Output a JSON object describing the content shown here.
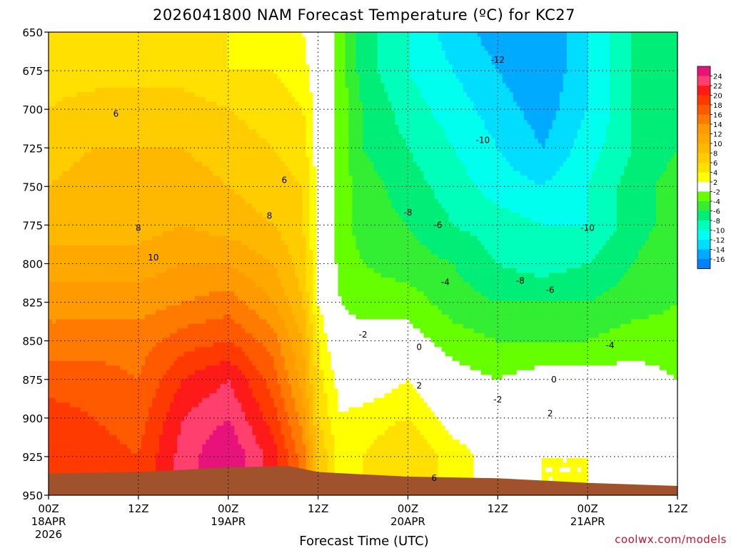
{
  "chart_data": {
    "type": "heatmap",
    "title": "2026041800 NAM Forecast Temperature (ºC) for KC27",
    "xlabel": "Forecast Time (UTC)",
    "credit": "coolwx.com/models",
    "y_axis": {
      "unit": "hPa",
      "ticks": [
        "650",
        "675",
        "700",
        "725",
        "750",
        "775",
        "800",
        "825",
        "850",
        "875",
        "900",
        "925",
        "950"
      ],
      "range": [
        650,
        950
      ]
    },
    "x_axis": {
      "unit": "hours since 2026-04-18 00Z",
      "range": [
        0,
        84
      ],
      "ticks": [
        {
          "h": 0,
          "label": "00Z",
          "date": "18APR",
          "year": "2026"
        },
        {
          "h": 12,
          "label": "12Z",
          "date": "",
          "year": ""
        },
        {
          "h": 24,
          "label": "00Z",
          "date": "19APR",
          "year": ""
        },
        {
          "h": 36,
          "label": "12Z",
          "date": "",
          "year": ""
        },
        {
          "h": 48,
          "label": "00Z",
          "date": "20APR",
          "year": ""
        },
        {
          "h": 60,
          "label": "12Z",
          "date": "",
          "year": ""
        },
        {
          "h": 72,
          "label": "00Z",
          "date": "21APR",
          "year": ""
        },
        {
          "h": 84,
          "label": "12Z",
          "date": "",
          "year": ""
        }
      ]
    },
    "colorbar": {
      "bands": [
        {
          "lo": 24,
          "hi": 26,
          "color": "#e8137a"
        },
        {
          "lo": 22,
          "hi": 24,
          "color": "#ff3f6e"
        },
        {
          "lo": 20,
          "hi": 22,
          "color": "#ff1a1a"
        },
        {
          "lo": 18,
          "hi": 20,
          "color": "#ff3a00"
        },
        {
          "lo": 16,
          "hi": 18,
          "color": "#ff5a00"
        },
        {
          "lo": 14,
          "hi": 16,
          "color": "#ff7a00"
        },
        {
          "lo": 12,
          "hi": 14,
          "color": "#ff9a00"
        },
        {
          "lo": 10,
          "hi": 12,
          "color": "#ffa800"
        },
        {
          "lo": 8,
          "hi": 10,
          "color": "#ffb800"
        },
        {
          "lo": 6,
          "hi": 8,
          "color": "#ffcc00"
        },
        {
          "lo": 4,
          "hi": 6,
          "color": "#ffe000"
        },
        {
          "lo": 2,
          "hi": 4,
          "color": "#ffff00"
        },
        {
          "lo": -2,
          "hi": 2,
          "color": "#ffffff"
        },
        {
          "lo": -4,
          "hi": -2,
          "color": "#66ff00"
        },
        {
          "lo": -6,
          "hi": -4,
          "color": "#33ee33"
        },
        {
          "lo": -8,
          "hi": -6,
          "color": "#00ee77"
        },
        {
          "lo": -10,
          "hi": -8,
          "color": "#00ffbb"
        },
        {
          "lo": -12,
          "hi": -10,
          "color": "#00ffee"
        },
        {
          "lo": -14,
          "hi": -12,
          "color": "#00ddff"
        },
        {
          "lo": -16,
          "hi": -14,
          "color": "#00aaff"
        },
        {
          "lo": -18,
          "hi": -16,
          "color": "#0080ff"
        }
      ],
      "labels": [
        "24",
        "22",
        "20",
        "18",
        "16",
        "14",
        "12",
        "10",
        "8",
        "6",
        "4",
        "2",
        "-2",
        "-4",
        "-6",
        "-8",
        "-10",
        "-12",
        "-14",
        "-16"
      ]
    },
    "temperature_grid_C": {
      "hours": [
        0,
        6,
        12,
        18,
        24,
        30,
        34,
        36,
        39,
        42,
        48,
        54,
        60,
        66,
        72,
        78,
        84
      ],
      "pressures_hPa": [
        650,
        675,
        700,
        725,
        750,
        775,
        800,
        825,
        850,
        875,
        900,
        925,
        950
      ],
      "values": [
        [
          4,
          4,
          4,
          4,
          4,
          3,
          2,
          0,
          -3,
          -7,
          -10,
          -13,
          -15,
          -16,
          -12,
          -8,
          -6
        ],
        [
          5,
          5,
          5,
          5,
          4,
          4,
          3,
          0,
          -3,
          -7,
          -10,
          -12,
          -14,
          -16,
          -12,
          -8,
          -6
        ],
        [
          6,
          7,
          7,
          7,
          6,
          5,
          4,
          1,
          -3,
          -6,
          -9,
          -11,
          -13,
          -15,
          -12,
          -8,
          -6
        ],
        [
          7,
          8,
          8,
          8,
          7,
          6,
          5,
          1,
          -3,
          -6,
          -8,
          -10,
          -12,
          -14,
          -11,
          -8,
          -6
        ],
        [
          8,
          9,
          9,
          9,
          8,
          7,
          6,
          1,
          -3,
          -5,
          -7,
          -9,
          -11,
          -12,
          -10,
          -7,
          -5
        ],
        [
          9,
          9,
          9,
          10,
          9,
          8,
          6,
          1,
          -3,
          -5,
          -6,
          -8,
          -9,
          -10,
          -10,
          -7,
          -5
        ],
        [
          11,
          11,
          11,
          12,
          12,
          10,
          7,
          2,
          -3,
          -4,
          -5,
          -6,
          -8,
          -9,
          -8,
          -6,
          -4
        ],
        [
          13,
          13,
          13,
          14,
          15,
          12,
          8,
          2,
          -2,
          -3,
          -3,
          -5,
          -6,
          -6,
          -6,
          -5,
          -4
        ],
        [
          15,
          15,
          15,
          17,
          18,
          15,
          10,
          4,
          -1,
          -1,
          -1,
          -3,
          -4,
          -4,
          -4,
          -3,
          -3
        ],
        [
          17,
          17,
          16,
          20,
          22,
          17,
          11,
          5,
          1,
          0,
          2,
          -1,
          -2,
          -1,
          -1,
          -1,
          -2
        ],
        [
          19,
          18,
          17,
          22,
          24,
          19,
          13,
          6,
          2,
          3,
          4,
          1,
          0,
          1,
          1,
          0,
          -1
        ],
        [
          20,
          19,
          18,
          23,
          26,
          21,
          15,
          8,
          3,
          4,
          6,
          3,
          1,
          2,
          2,
          1,
          0
        ],
        [
          20,
          19,
          18,
          23,
          26,
          21,
          15,
          8,
          3,
          4,
          6,
          3,
          1,
          2,
          2,
          1,
          0
        ]
      ]
    },
    "contour_labels": [
      {
        "text": "6",
        "h": 9,
        "p": 703
      },
      {
        "text": "8",
        "h": 12,
        "p": 777
      },
      {
        "text": "10",
        "h": 14,
        "p": 796
      },
      {
        "text": "8",
        "h": 29.5,
        "p": 769
      },
      {
        "text": "6",
        "h": 31.5,
        "p": 746
      },
      {
        "text": "-12",
        "h": 60,
        "p": 668
      },
      {
        "text": "-10",
        "h": 58,
        "p": 720
      },
      {
        "text": "-8",
        "h": 48,
        "p": 767
      },
      {
        "text": "-6",
        "h": 52,
        "p": 775
      },
      {
        "text": "-4",
        "h": 53,
        "p": 812
      },
      {
        "text": "-8",
        "h": 63,
        "p": 811
      },
      {
        "text": "-6",
        "h": 67,
        "p": 817
      },
      {
        "text": "-10",
        "h": 72,
        "p": 777
      },
      {
        "text": "-2",
        "h": 42,
        "p": 846
      },
      {
        "text": "0",
        "h": 49.5,
        "p": 854
      },
      {
        "text": "2",
        "h": 49.5,
        "p": 879
      },
      {
        "text": "-2",
        "h": 60,
        "p": 888
      },
      {
        "text": "0",
        "h": 67.5,
        "p": 875
      },
      {
        "text": "-4",
        "h": 75,
        "p": 853
      },
      {
        "text": "2",
        "h": 67,
        "p": 897
      },
      {
        "text": "6",
        "h": 51.5,
        "p": 939
      }
    ],
    "terrain": {
      "color": "#a0522d",
      "surface_pressure_hPa": [
        {
          "h": 0,
          "p": 936
        },
        {
          "h": 12,
          "p": 935
        },
        {
          "h": 24,
          "p": 932
        },
        {
          "h": 32,
          "p": 931
        },
        {
          "h": 36,
          "p": 935
        },
        {
          "h": 48,
          "p": 938
        },
        {
          "h": 60,
          "p": 939
        },
        {
          "h": 72,
          "p": 942
        },
        {
          "h": 84,
          "p": 944
        }
      ]
    },
    "grid": true
  }
}
